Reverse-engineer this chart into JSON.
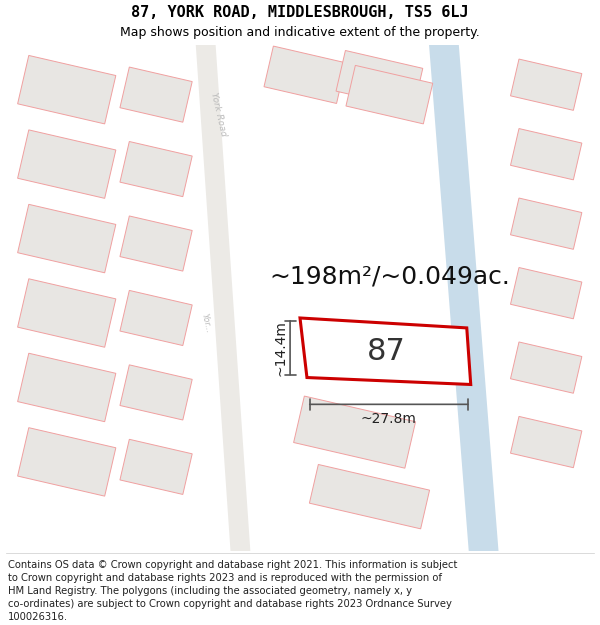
{
  "title_line1": "87, YORK ROAD, MIDDLESBROUGH, TS5 6LJ",
  "title_line2": "Map shows position and indicative extent of the property.",
  "footer_lines": [
    "Contains OS data © Crown copyright and database right 2021. This information is subject",
    "to Crown copyright and database rights 2023 and is reproduced with the permission of",
    "HM Land Registry. The polygons (including the associated geometry, namely x, y",
    "co-ordinates) are subject to Crown copyright and database rights 2023 Ordnance Survey",
    "100026316."
  ],
  "area_label": "~198m²/~0.049ac.",
  "number_label": "87",
  "width_label": "~27.8m",
  "height_label": "~14.4m",
  "map_bg": "#f7f6f4",
  "building_fill": "#e8e6e3",
  "building_outline": "#f0a0a0",
  "road_line_color": "#d0ccc8",
  "road_stripe_color": "#c8dcea",
  "york_road_color": "#eceae6",
  "york_road_text": "#bbbbbb",
  "property_fill": "#ffffff",
  "property_outline": "#cc0000",
  "dim_color": "#555555",
  "title_fontsize": 11,
  "subtitle_fontsize": 9,
  "footer_fontsize": 7.2,
  "area_fontsize": 18,
  "number_fontsize": 22,
  "dim_fontsize": 10
}
